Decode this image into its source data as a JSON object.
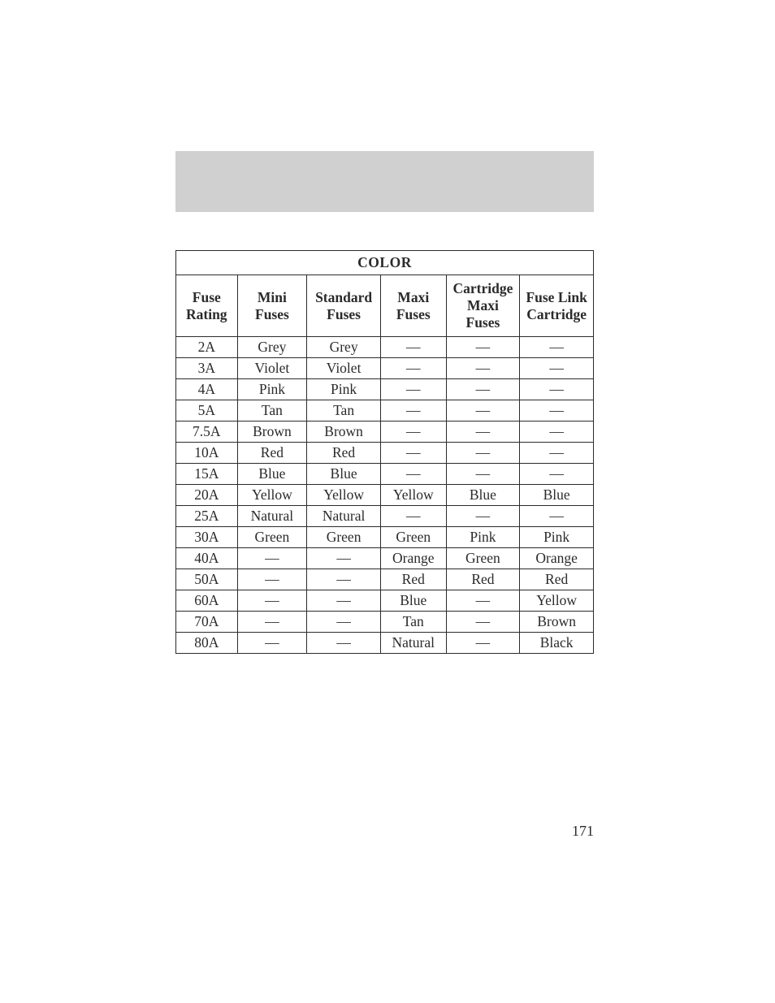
{
  "page_number": "171",
  "table": {
    "type": "table",
    "title": "COLOR",
    "background_color": "#ffffff",
    "border_color": "#2b2b2b",
    "header_bar_color": "#d0d0d0",
    "text_color": "#2b2b2b",
    "title_fontsize": 18,
    "header_fontsize": 17.5,
    "cell_fontsize": 17.5,
    "font_family": "Century Schoolbook",
    "columns": [
      {
        "label": "Fuse\nRating",
        "width_pct": 15
      },
      {
        "label": "Mini\nFuses",
        "width_pct": 17
      },
      {
        "label": "Standard\nFuses",
        "width_pct": 18
      },
      {
        "label": "Maxi\nFuses",
        "width_pct": 16
      },
      {
        "label": "Cartridge\nMaxi\nFuses",
        "width_pct": 18
      },
      {
        "label": "Fuse Link\nCartridge",
        "width_pct": 18
      }
    ],
    "rows": [
      [
        "2A",
        "Grey",
        "Grey",
        "—",
        "—",
        "—"
      ],
      [
        "3A",
        "Violet",
        "Violet",
        "—",
        "—",
        "—"
      ],
      [
        "4A",
        "Pink",
        "Pink",
        "—",
        "—",
        "—"
      ],
      [
        "5A",
        "Tan",
        "Tan",
        "—",
        "—",
        "—"
      ],
      [
        "7.5A",
        "Brown",
        "Brown",
        "—",
        "—",
        "—"
      ],
      [
        "10A",
        "Red",
        "Red",
        "—",
        "—",
        "—"
      ],
      [
        "15A",
        "Blue",
        "Blue",
        "—",
        "—",
        "—"
      ],
      [
        "20A",
        "Yellow",
        "Yellow",
        "Yellow",
        "Blue",
        "Blue"
      ],
      [
        "25A",
        "Natural",
        "Natural",
        "—",
        "—",
        "—"
      ],
      [
        "30A",
        "Green",
        "Green",
        "Green",
        "Pink",
        "Pink"
      ],
      [
        "40A",
        "—",
        "—",
        "Orange",
        "Green",
        "Orange"
      ],
      [
        "50A",
        "—",
        "—",
        "Red",
        "Red",
        "Red"
      ],
      [
        "60A",
        "—",
        "—",
        "Blue",
        "—",
        "Yellow"
      ],
      [
        "70A",
        "—",
        "—",
        "Tan",
        "—",
        "Brown"
      ],
      [
        "80A",
        "—",
        "—",
        "Natural",
        "—",
        "Black"
      ]
    ]
  }
}
